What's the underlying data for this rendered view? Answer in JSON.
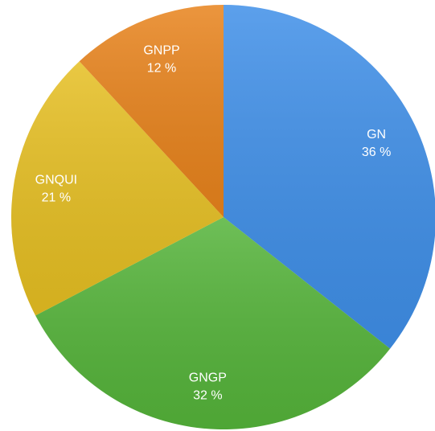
{
  "chart_data": {
    "type": "pie",
    "categories": [
      "GN",
      "GNGP",
      "GNQUI",
      "GNPP"
    ],
    "values": [
      36,
      32,
      21,
      12
    ],
    "value_labels": [
      "36 %",
      "32 %",
      "21 %",
      "12 %"
    ],
    "colors": [
      "#3f8fe8",
      "#55b43a",
      "#e6bf22",
      "#e8831c"
    ]
  }
}
